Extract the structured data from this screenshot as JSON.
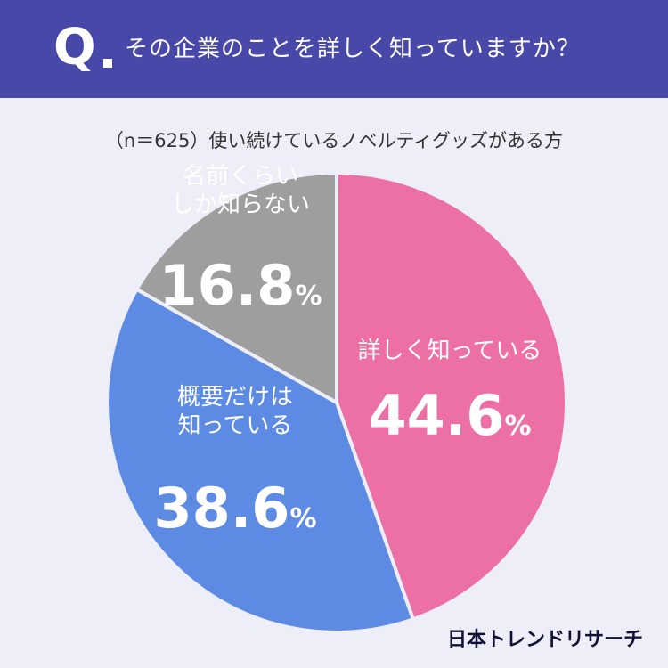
{
  "header": {
    "q_letter": "Q",
    "question": "その企業のことを詳しく知っていますか？"
  },
  "subtitle": "（n＝625）使い続けているノベルティグッズがある方",
  "brand": "日本トレンドリサーチ",
  "chart_data": {
    "type": "pie",
    "title": "その企業のことを詳しく知っていますか？",
    "subtitle": "（n＝625）使い続けているノベルティグッズがある方",
    "slices": [
      {
        "label_lines": [
          "詳しく知っている"
        ],
        "value": 44.6,
        "value_label": "44.6",
        "color": "#ec6fa5",
        "text_color": "#ffffff"
      },
      {
        "label_lines": [
          "概要だけは",
          "知っている"
        ],
        "value": 38.6,
        "value_label": "38.6",
        "color": "#5d8ae2",
        "text_color": "#ffffff"
      },
      {
        "label_lines": [
          "名前くらい",
          "しか知らない"
        ],
        "value": 16.8,
        "value_label": "16.8",
        "color": "#9e9e9e",
        "text_color": "#ffffff"
      }
    ],
    "unit": "%",
    "start": "12 o'clock",
    "direction": "clockwise",
    "legend": "none"
  }
}
